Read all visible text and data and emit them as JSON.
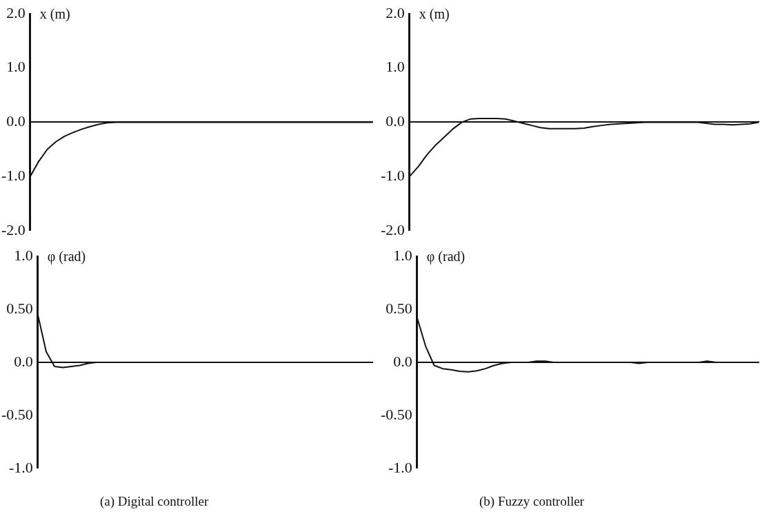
{
  "chart_data": [
    {
      "type": "line",
      "ylabel": "x (m)",
      "categories": [
        null,
        null,
        null,
        null,
        null,
        null,
        null,
        null,
        null,
        null,
        null,
        null,
        null,
        null,
        null,
        null,
        null,
        null,
        null,
        null,
        null,
        null,
        null,
        null,
        null,
        null,
        null,
        null,
        null,
        null,
        null,
        null,
        null,
        null,
        null,
        null,
        null,
        null,
        null,
        null,
        null
      ],
      "values": [
        -1.0,
        -0.72,
        -0.5,
        -0.36,
        -0.26,
        -0.19,
        -0.13,
        -0.08,
        -0.04,
        -0.01,
        0,
        0,
        0,
        0,
        0,
        0,
        0,
        0,
        0,
        0,
        0,
        0,
        0,
        0,
        0,
        0,
        0,
        0,
        0,
        0,
        0,
        0,
        0,
        0,
        0,
        0,
        0,
        0,
        0,
        0,
        0
      ],
      "color": "#111111",
      "ylim": [
        -2,
        2
      ],
      "yticks": [
        {
          "value": -2,
          "label": "-2.0"
        },
        {
          "value": -1,
          "label": "-1.0"
        },
        {
          "value": 0,
          "label": "0.0"
        },
        {
          "value": 1,
          "label": "1.0"
        },
        {
          "value": 2,
          "label": "2.0"
        }
      ],
      "tick_labels": "y"
    },
    {
      "type": "line",
      "ylabel": "x (m)",
      "categories": [
        null,
        null,
        null,
        null,
        null,
        null,
        null,
        null,
        null,
        null,
        null,
        null,
        null,
        null,
        null,
        null,
        null,
        null,
        null,
        null,
        null,
        null,
        null,
        null,
        null,
        null,
        null,
        null,
        null,
        null,
        null,
        null,
        null,
        null,
        null,
        null,
        null,
        null,
        null,
        null,
        null
      ],
      "values": [
        -1.0,
        -0.82,
        -0.6,
        -0.42,
        -0.27,
        -0.12,
        0,
        0.06,
        0.07,
        0.07,
        0.07,
        0.06,
        0.02,
        -0.02,
        -0.06,
        -0.1,
        -0.12,
        -0.12,
        -0.12,
        -0.12,
        -0.11,
        -0.08,
        -0.06,
        -0.04,
        -0.03,
        -0.02,
        -0.01,
        0,
        0,
        0,
        0,
        0,
        0,
        0,
        -0.02,
        -0.04,
        -0.04,
        -0.05,
        -0.04,
        -0.03,
        0
      ],
      "color": "#111111",
      "ylim": [
        -2,
        2
      ],
      "yticks": [
        {
          "value": -2,
          "label": "-2.0"
        },
        {
          "value": -1,
          "label": "-1.0"
        },
        {
          "value": 0,
          "label": "0.0"
        },
        {
          "value": 1,
          "label": "1.0"
        },
        {
          "value": 2,
          "label": "2.0"
        }
      ],
      "tick_labels": "y"
    },
    {
      "type": "line",
      "ylabel": "φ (rad)",
      "annotations": [
        "(a) Digital controller"
      ],
      "categories": [
        null,
        null,
        null,
        null,
        null,
        null,
        null,
        null,
        null,
        null,
        null,
        null,
        null,
        null,
        null,
        null,
        null,
        null,
        null,
        null,
        null,
        null,
        null,
        null,
        null,
        null,
        null,
        null,
        null,
        null,
        null,
        null,
        null,
        null,
        null,
        null,
        null,
        null,
        null,
        null,
        null
      ],
      "values": [
        0.45,
        0.1,
        -0.04,
        -0.05,
        -0.04,
        -0.03,
        -0.01,
        0,
        0,
        0,
        0,
        0,
        0,
        0,
        0,
        0,
        0,
        0,
        0,
        0,
        0,
        0,
        0,
        0,
        0,
        0,
        0,
        0,
        0,
        0,
        0,
        0,
        0,
        0,
        0,
        0,
        0,
        0,
        0,
        0,
        0
      ],
      "color": "#111111",
      "ylim": [
        -1,
        1
      ],
      "yticks": [
        {
          "value": -1,
          "label": "-1.0"
        },
        {
          "value": -0.5,
          "label": "-0.50"
        },
        {
          "value": 0,
          "label": "0.0"
        },
        {
          "value": 0.5,
          "label": "0.50"
        },
        {
          "value": 1,
          "label": "1.0"
        }
      ],
      "tick_labels": "y"
    },
    {
      "type": "line",
      "ylabel": "φ (rad)",
      "annotations": [
        "(b) Fuzzy controller"
      ],
      "categories": [
        null,
        null,
        null,
        null,
        null,
        null,
        null,
        null,
        null,
        null,
        null,
        null,
        null,
        null,
        null,
        null,
        null,
        null,
        null,
        null,
        null,
        null,
        null,
        null,
        null,
        null,
        null,
        null,
        null,
        null,
        null,
        null,
        null,
        null,
        null,
        null,
        null,
        null,
        null,
        null,
        null
      ],
      "values": [
        0.42,
        0.15,
        -0.03,
        -0.06,
        -0.07,
        -0.085,
        -0.09,
        -0.08,
        -0.06,
        -0.03,
        -0.01,
        0,
        0,
        0,
        0.01,
        0.01,
        0,
        0,
        0,
        0,
        0,
        0,
        0,
        0,
        0,
        0,
        -0.01,
        0,
        0,
        0,
        0,
        0,
        0,
        0,
        0.01,
        0,
        0,
        0,
        0,
        0,
        0
      ],
      "color": "#111111",
      "ylim": [
        -1,
        1
      ],
      "yticks": [
        {
          "value": -1,
          "label": "-1.0"
        },
        {
          "value": -0.5,
          "label": "-0.50"
        },
        {
          "value": 0,
          "label": "0.0"
        },
        {
          "value": 0.5,
          "label": "0.50"
        },
        {
          "value": 1,
          "label": "1.0"
        }
      ],
      "tick_labels": "y"
    }
  ]
}
